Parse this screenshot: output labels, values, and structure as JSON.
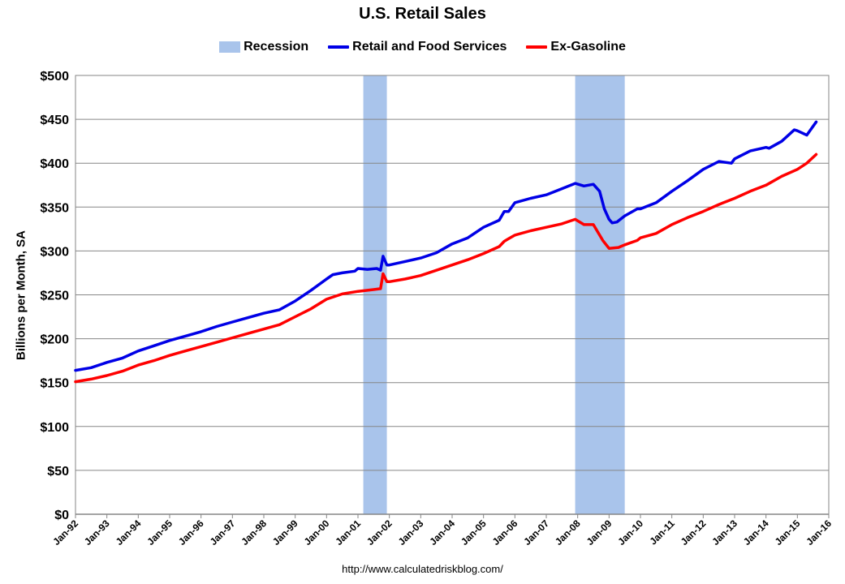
{
  "chart_data": {
    "type": "line",
    "title": "U.S. Retail Sales",
    "ylabel": "Billions per Month, SA",
    "xlabel": "",
    "source": "http://www.calculatedriskblog.com/",
    "ylim": [
      0,
      500
    ],
    "yticks": [
      0,
      50,
      100,
      150,
      200,
      250,
      300,
      350,
      400,
      450,
      500
    ],
    "ytick_labels": [
      "$0",
      "$50",
      "$100",
      "$150",
      "$200",
      "$250",
      "$300",
      "$350",
      "$400",
      "$450",
      "$500"
    ],
    "xlim": [
      1992.0,
      2016.0
    ],
    "xticks": [
      1992,
      1993,
      1994,
      1995,
      1996,
      1997,
      1998,
      1999,
      2000,
      2001,
      2002,
      2003,
      2004,
      2005,
      2006,
      2007,
      2008,
      2009,
      2010,
      2011,
      2012,
      2013,
      2014,
      2015,
      2016
    ],
    "xtick_labels": [
      "Jan-92",
      "Jan-93",
      "Jan-94",
      "Jan-95",
      "Jan-96",
      "Jan-97",
      "Jan-98",
      "Jan-99",
      "Jan-00",
      "Jan-01",
      "Jan-02",
      "Jan-03",
      "Jan-04",
      "Jan-05",
      "Jan-06",
      "Jan-07",
      "Jan-08",
      "Jan-09",
      "Jan-10",
      "Jan-11",
      "Jan-12",
      "Jan-13",
      "Jan-14",
      "Jan-15",
      "Jan-16"
    ],
    "grid": true,
    "legend_position": "top",
    "legend": [
      {
        "label": "Recession",
        "kind": "box",
        "color": "#a9c4eb"
      },
      {
        "label": "Retail and Food Services",
        "kind": "line",
        "color": "#0000e6"
      },
      {
        "label": "Ex-Gasoline",
        "kind": "line",
        "color": "#ff0000"
      }
    ],
    "recessions": [
      {
        "start": 2001.17,
        "end": 2001.92
      },
      {
        "start": 2007.92,
        "end": 2009.5
      }
    ],
    "series": [
      {
        "name": "Retail and Food Services",
        "color": "#0000e6",
        "x": [
          1992.0,
          1992.5,
          1993.0,
          1993.5,
          1994.0,
          1994.5,
          1995.0,
          1995.5,
          1996.0,
          1996.5,
          1997.0,
          1997.5,
          1998.0,
          1998.5,
          1999.0,
          1999.5,
          2000.0,
          2000.2,
          2000.5,
          2000.9,
          2001.0,
          2001.3,
          2001.6,
          2001.72,
          2001.8,
          2001.92,
          2002.0,
          2002.5,
          2003.0,
          2003.5,
          2004.0,
          2004.5,
          2005.0,
          2005.5,
          2005.66,
          2005.8,
          2006.0,
          2006.5,
          2007.0,
          2007.5,
          2007.92,
          2008.2,
          2008.5,
          2008.7,
          2008.85,
          2009.0,
          2009.1,
          2009.25,
          2009.5,
          2009.9,
          2010.0,
          2010.5,
          2011.0,
          2011.5,
          2012.0,
          2012.5,
          2012.9,
          2013.0,
          2013.5,
          2014.0,
          2014.1,
          2014.5,
          2014.9,
          2015.0,
          2015.3,
          2015.6
        ],
        "y": [
          164,
          167,
          173,
          178,
          186,
          192,
          198,
          203,
          208,
          214,
          219,
          224,
          229,
          233,
          243,
          255,
          268,
          273,
          275,
          277,
          280,
          279,
          280,
          278,
          294,
          284,
          284,
          288,
          292,
          298,
          308,
          315,
          327,
          335,
          345,
          345,
          355,
          360,
          364,
          371,
          377,
          374,
          376,
          368,
          348,
          336,
          332,
          333,
          340,
          348,
          348,
          355,
          368,
          380,
          393,
          402,
          400,
          405,
          414,
          418,
          417,
          425,
          438,
          437,
          432,
          447
        ]
      },
      {
        "name": "Ex-Gasoline",
        "color": "#ff0000",
        "x": [
          1992.0,
          1992.5,
          1993.0,
          1993.5,
          1994.0,
          1994.5,
          1995.0,
          1995.5,
          1996.0,
          1996.5,
          1997.0,
          1997.5,
          1998.0,
          1998.5,
          1999.0,
          1999.5,
          2000.0,
          2000.5,
          2001.0,
          2001.5,
          2001.72,
          2001.8,
          2001.92,
          2002.0,
          2002.5,
          2003.0,
          2003.5,
          2004.0,
          2004.5,
          2005.0,
          2005.5,
          2005.66,
          2005.8,
          2006.0,
          2006.5,
          2007.0,
          2007.5,
          2007.92,
          2008.2,
          2008.5,
          2008.8,
          2009.0,
          2009.3,
          2009.5,
          2009.9,
          2010.0,
          2010.5,
          2011.0,
          2011.5,
          2012.0,
          2012.5,
          2013.0,
          2013.5,
          2014.0,
          2014.5,
          2015.0,
          2015.3,
          2015.6
        ],
        "y": [
          151,
          154,
          158,
          163,
          170,
          175,
          181,
          186,
          191,
          196,
          201,
          206,
          211,
          216,
          225,
          234,
          245,
          251,
          254,
          256,
          257,
          274,
          265,
          265,
          268,
          272,
          278,
          284,
          290,
          297,
          305,
          311,
          314,
          318,
          323,
          327,
          331,
          336,
          330,
          330,
          312,
          303,
          304,
          307,
          312,
          315,
          320,
          330,
          338,
          345,
          353,
          360,
          368,
          375,
          385,
          393,
          400,
          410
        ]
      }
    ]
  }
}
